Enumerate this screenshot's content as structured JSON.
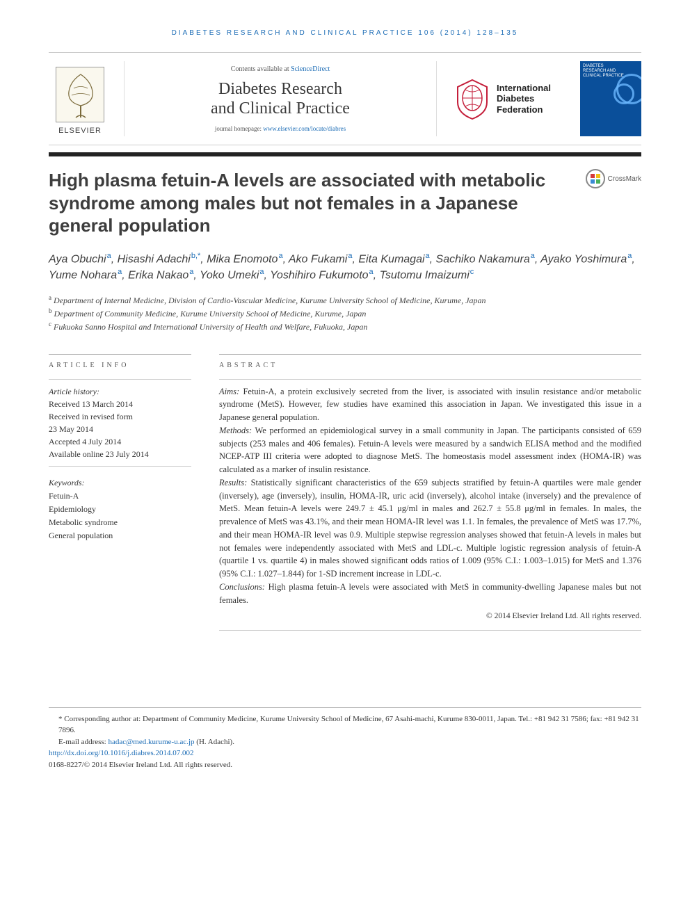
{
  "colors": {
    "link": "#1a6bb5",
    "text": "#333333",
    "rule": "#222222",
    "cover_bg": "#0a4f9a"
  },
  "running_head": "DIABETES RESEARCH AND CLINICAL PRACTICE 106 (2014) 128–135",
  "masthead": {
    "contents_prefix": "Contents available at ",
    "sciencedirect": "ScienceDirect",
    "journal_name_line1": "Diabetes Research",
    "journal_name_line2": "and Clinical Practice",
    "homepage_prefix": "journal homepage: ",
    "homepage_url": "www.elsevier.com/locate/diabres",
    "elsevier": "ELSEVIER",
    "idf_line1": "International",
    "idf_line2": "Diabetes",
    "idf_line3": "Federation",
    "cover_label_line1": "DIABETES",
    "cover_label_line2": "RESEARCH AND",
    "cover_label_line3": "CLINICAL PRACTICE"
  },
  "crossmark": "CrossMark",
  "title": "High plasma fetuin-A levels are associated with metabolic syndrome among males but not females in a Japanese general population",
  "authors_html_parts": [
    {
      "name": "Aya Obuchi",
      "sup": "a"
    },
    {
      "name": "Hisashi Adachi",
      "sup": "b,*"
    },
    {
      "name": "Mika Enomoto",
      "sup": "a"
    },
    {
      "name": "Ako Fukami",
      "sup": "a"
    },
    {
      "name": "Eita Kumagai",
      "sup": "a"
    },
    {
      "name": "Sachiko Nakamura",
      "sup": "a"
    },
    {
      "name": "Ayako Yoshimura",
      "sup": "a"
    },
    {
      "name": "Yume Nohara",
      "sup": "a"
    },
    {
      "name": "Erika Nakao",
      "sup": "a"
    },
    {
      "name": "Yoko Umeki",
      "sup": "a"
    },
    {
      "name": "Yoshihiro Fukumoto",
      "sup": "a"
    },
    {
      "name": "Tsutomu Imaizumi",
      "sup": "c"
    }
  ],
  "affiliations": [
    {
      "sup": "a",
      "text": "Department of Internal Medicine, Division of Cardio-Vascular Medicine, Kurume University School of Medicine, Kurume, Japan"
    },
    {
      "sup": "b",
      "text": "Department of Community Medicine, Kurume University School of Medicine, Kurume, Japan"
    },
    {
      "sup": "c",
      "text": "Fukuoka Sanno Hospital and International University of Health and Welfare, Fukuoka, Japan"
    }
  ],
  "info": {
    "head": "ARTICLE INFO",
    "history_label": "Article history:",
    "received": "Received 13 March 2014",
    "revised1": "Received in revised form",
    "revised2": "23 May 2014",
    "accepted": "Accepted 4 July 2014",
    "online": "Available online 23 July 2014",
    "keywords_label": "Keywords:",
    "keywords": [
      "Fetuin-A",
      "Epidemiology",
      "Metabolic syndrome",
      "General population"
    ]
  },
  "abstract": {
    "head": "ABSTRACT",
    "aims_label": "Aims:",
    "aims_text": " Fetuin-A, a protein exclusively secreted from the liver, is associated with insulin resistance and/or metabolic syndrome (MetS). However, few studies have examined this association in Japan. We investigated this issue in a Japanese general population.",
    "methods_label": "Methods:",
    "methods_text": " We performed an epidemiological survey in a small community in Japan. The participants consisted of 659 subjects (253 males and 406 females). Fetuin-A levels were measured by a sandwich ELISA method and the modified NCEP-ATP III criteria were adopted to diagnose MetS. The homeostasis model assessment index (HOMA-IR) was calculated as a marker of insulin resistance.",
    "results_label": "Results:",
    "results_text": " Statistically significant characteristics of the 659 subjects stratified by fetuin-A quartiles were male gender (inversely), age (inversely), insulin, HOMA-IR, uric acid (inversely), alcohol intake (inversely) and the prevalence of MetS. Mean fetuin-A levels were 249.7 ± 45.1 μg/ml in males and 262.7 ± 55.8 μg/ml in females. In males, the prevalence of MetS was 43.1%, and their mean HOMA-IR level was 1.1. In females, the prevalence of MetS was 17.7%, and their mean HOMA-IR level was 0.9. Multiple stepwise regression analyses showed that fetuin-A levels in males but not females were independently associated with MetS and LDL-c. Multiple logistic regression analysis of fetuin-A (quartile 1 vs. quartile 4) in males showed significant odds ratios of 1.009 (95% C.I.: 1.003–1.015) for MetS and 1.376 (95% C.I.: 1.027–1.844) for 1-SD increment increase in LDL-c.",
    "conclusions_label": "Conclusions:",
    "conclusions_text": " High plasma fetuin-A levels were associated with MetS in community-dwelling Japanese males but not females.",
    "copyright": "© 2014 Elsevier Ireland Ltd. All rights reserved."
  },
  "footer": {
    "corr_label": "* Corresponding author at:",
    "corr_text": " Department of Community Medicine, Kurume University School of Medicine, 67 Asahi-machi, Kurume 830-0011, Japan. Tel.: +81 942 31 7586; fax: +81 942 31 7896.",
    "email_label": "E-mail address: ",
    "email": "hadac@med.kurume-u.ac.jp",
    "email_who": " (H. Adachi).",
    "doi": "http://dx.doi.org/10.1016/j.diabres.2014.07.002",
    "issn_line": "0168-8227/© 2014 Elsevier Ireland Ltd. All rights reserved."
  }
}
